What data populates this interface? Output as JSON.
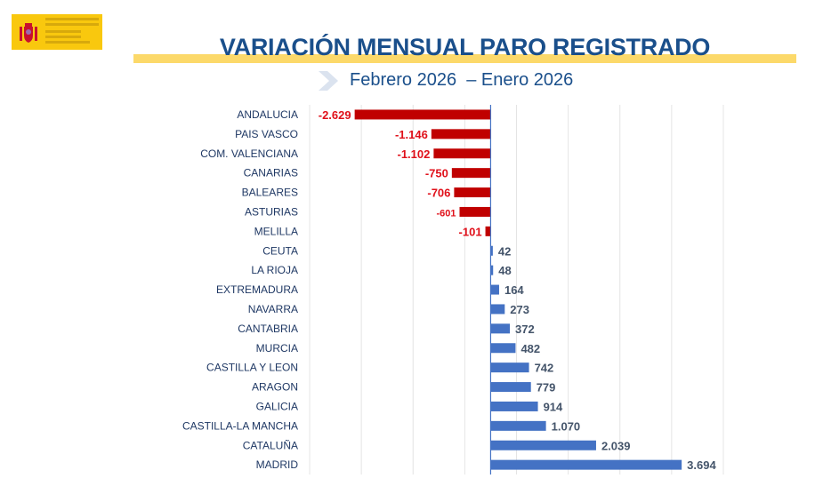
{
  "header": {
    "title": "VARIACIÓN MENSUAL PARO REGISTRADO",
    "subtitle": "Febrero 2026  – Enero 2026",
    "logo_text": "VICEPRESIDENCIA SEGUNDA DEL GOBIERNO MINISTERIO DE TRABAJO Y ECONOMÍA SOCIAL"
  },
  "colors": {
    "negative": "#c00000",
    "positive": "#4472c4",
    "title": "#1a4f8b",
    "highlight": "#fcd96a"
  },
  "chart_data": {
    "type": "bar",
    "orientation": "horizontal",
    "categories": [
      "ANDALUCIA",
      "PAIS VASCO",
      "COM. VALENCIANA",
      "CANARIAS",
      "BALEARES",
      "ASTURIAS",
      "MELILLA",
      "CEUTA",
      "LA RIOJA",
      "EXTREMADURA",
      "NAVARRA",
      "CANTABRIA",
      "MURCIA",
      "CASTILLA Y LEON",
      "ARAGON",
      "GALICIA",
      "CASTILLA-LA MANCHA",
      "CATALUÑA",
      "MADRID"
    ],
    "values": [
      -2629,
      -1146,
      -1102,
      -750,
      -706,
      -601,
      -101,
      42,
      48,
      164,
      273,
      372,
      482,
      742,
      779,
      914,
      1070,
      2039,
      3694
    ],
    "data_labels": [
      "-2.629",
      "-1.146",
      "-1.102",
      "-750",
      "-706",
      "-601",
      "-101",
      "42",
      "48",
      "164",
      "273",
      "372",
      "482",
      "742",
      "779",
      "914",
      "1.070",
      "2.039",
      "3.694"
    ],
    "xlim": [
      -3500,
      4500
    ],
    "grid": true,
    "legend": "none"
  }
}
